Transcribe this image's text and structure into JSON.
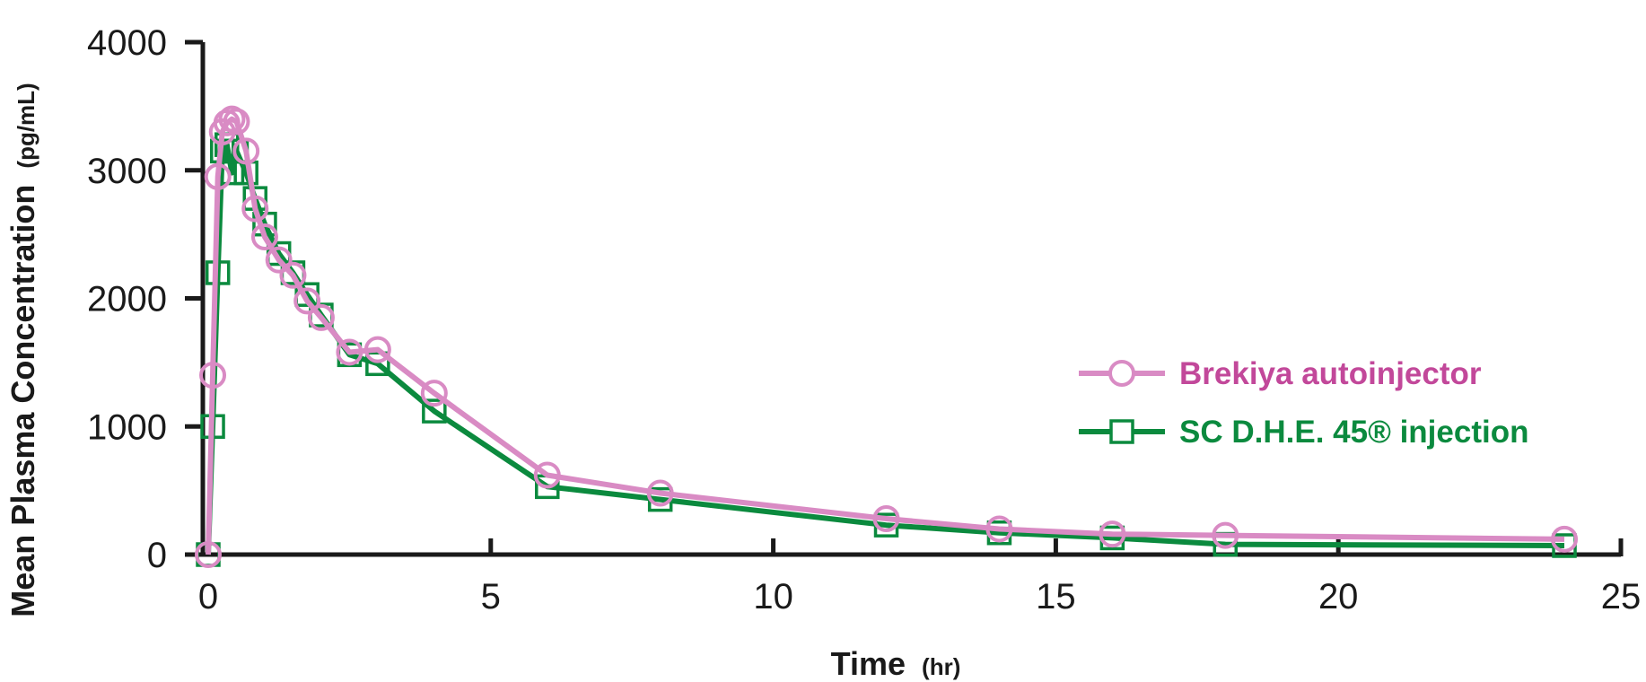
{
  "chart_data": {
    "type": "line",
    "xlabel": "Time",
    "xlabel_unit": "(hr)",
    "ylabel": "Mean Plasma Concentration",
    "ylabel_unit": "(pg/mL)",
    "xlim": [
      0,
      25
    ],
    "ylim": [
      0,
      4000
    ],
    "xticks": [
      "0",
      "5",
      "10",
      "15",
      "20",
      "25"
    ],
    "yticks": [
      "0",
      "1000",
      "2000",
      "3000",
      "4000"
    ],
    "grid": false,
    "legend_position": "right",
    "series": [
      {
        "name": "Brekiya autoinjector",
        "color": "#d98bc4",
        "label_color": "#c2489a",
        "marker": "circle",
        "x": [
          0,
          0.08,
          0.17,
          0.25,
          0.33,
          0.42,
          0.5,
          0.67,
          0.83,
          1.0,
          1.25,
          1.5,
          1.75,
          2.0,
          2.5,
          3.0,
          4.0,
          6.0,
          8.0,
          12.0,
          14.0,
          16.0,
          18.0,
          24.0
        ],
        "values": [
          0,
          1400,
          2950,
          3300,
          3370,
          3400,
          3380,
          3150,
          2700,
          2480,
          2300,
          2180,
          1980,
          1850,
          1580,
          1600,
          1260,
          620,
          480,
          280,
          200,
          160,
          150,
          120
        ]
      },
      {
        "name": "SC D.H.E. 45® injection",
        "color": "#0b8a3e",
        "label_color": "#0b8a3e",
        "marker": "square",
        "x": [
          0,
          0.08,
          0.17,
          0.25,
          0.33,
          0.42,
          0.5,
          0.67,
          0.83,
          1.0,
          1.25,
          1.5,
          1.75,
          2.0,
          2.5,
          3.0,
          4.0,
          6.0,
          8.0,
          12.0,
          14.0,
          16.0,
          18.0,
          24.0
        ],
        "values": [
          0,
          1000,
          2200,
          3150,
          3200,
          2980,
          3150,
          2980,
          2780,
          2580,
          2350,
          2200,
          2030,
          1870,
          1560,
          1490,
          1120,
          530,
          430,
          230,
          170,
          130,
          80,
          70
        ]
      }
    ]
  }
}
